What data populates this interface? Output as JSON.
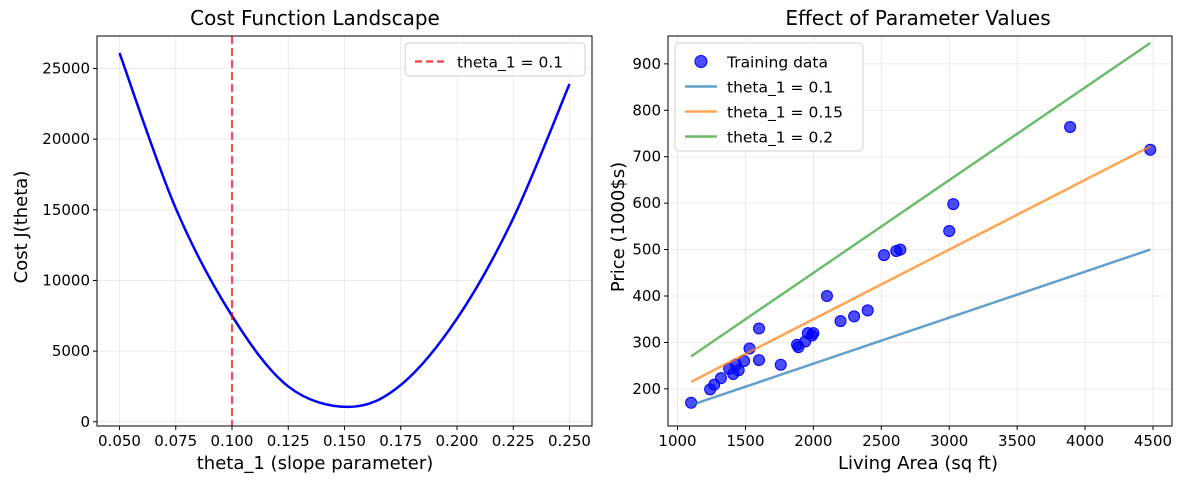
{
  "colors": {
    "cost_curve": "#0000ff",
    "marker_line": "#ff0000",
    "points": "#0000ff",
    "line_0_1": "#1f77b4",
    "line_0_15": "#ff7f0e",
    "line_0_2": "#2ca02c"
  },
  "chart_data": [
    {
      "type": "line",
      "title": "Cost Function Landscape",
      "xlabel": "theta_1 (slope parameter)",
      "ylabel": "Cost J(theta)",
      "xlim": [
        0.04,
        0.26
      ],
      "ylim": [
        -300,
        27300
      ],
      "grid": true,
      "legend_position": "top-right",
      "xticks": [
        0.05,
        0.075,
        0.1,
        0.125,
        0.15,
        0.175,
        0.2,
        0.225,
        0.25
      ],
      "xtick_labels": [
        "0.050",
        "0.075",
        "0.100",
        "0.125",
        "0.150",
        "0.175",
        "0.200",
        "0.225",
        "0.250"
      ],
      "yticks": [
        0,
        5000,
        10000,
        15000,
        20000,
        25000
      ],
      "ytick_labels": [
        "0",
        "5000",
        "10000",
        "15000",
        "20000",
        "25000"
      ],
      "series": [
        {
          "type": "line",
          "color_key": "cost_curve",
          "x": [
            0.05,
            0.075,
            0.1,
            0.125,
            0.152,
            0.175,
            0.2,
            0.225,
            0.25
          ],
          "y": [
            26100,
            15100,
            7500,
            2500,
            1050,
            2600,
            7300,
            14400,
            23900
          ]
        }
      ],
      "vlines": [
        {
          "x": 0.1,
          "label": "theta_1 = 0.1",
          "style": "dashed",
          "color_key": "marker_line"
        }
      ]
    },
    {
      "type": "scatter",
      "title": "Effect of Parameter Values",
      "xlabel": "Living Area (sq ft)",
      "ylabel": "Price (1000$s)",
      "xlim": [
        930,
        4640
      ],
      "ylim": [
        120,
        960
      ],
      "grid": true,
      "legend_position": "top-left",
      "xticks": [
        1000,
        1500,
        2000,
        2500,
        3000,
        3500,
        4000,
        4500
      ],
      "xtick_labels": [
        "1000",
        "1500",
        "2000",
        "2500",
        "3000",
        "3500",
        "4000",
        "4500"
      ],
      "yticks": [
        200,
        300,
        400,
        500,
        600,
        700,
        800,
        900
      ],
      "ytick_labels": [
        "200",
        "300",
        "400",
        "500",
        "600",
        "700",
        "800",
        "900"
      ],
      "scatter": {
        "name": "Training data",
        "color_key": "points",
        "points": [
          [
            1100,
            170
          ],
          [
            1240,
            199
          ],
          [
            1270,
            209
          ],
          [
            1320,
            223
          ],
          [
            1380,
            243
          ],
          [
            1410,
            232
          ],
          [
            1430,
            252
          ],
          [
            1450,
            240
          ],
          [
            1490,
            260
          ],
          [
            1530,
            287
          ],
          [
            1600,
            330
          ],
          [
            1600,
            262
          ],
          [
            1760,
            252
          ],
          [
            1880,
            295
          ],
          [
            1890,
            290
          ],
          [
            1940,
            302
          ],
          [
            1960,
            320
          ],
          [
            1990,
            315
          ],
          [
            2000,
            320
          ],
          [
            2100,
            400
          ],
          [
            2200,
            346
          ],
          [
            2300,
            356
          ],
          [
            2400,
            369
          ],
          [
            2520,
            488
          ],
          [
            2610,
            497
          ],
          [
            2640,
            500
          ],
          [
            3000,
            540
          ],
          [
            3030,
            598
          ],
          [
            3890,
            764
          ],
          [
            4480,
            715
          ]
        ]
      },
      "series": [
        {
          "name": "theta_1 = 0.1",
          "color_key": "line_0_1",
          "x": [
            1100,
            4480
          ],
          "y": [
            165,
            500
          ]
        },
        {
          "name": "theta_1 = 0.15",
          "color_key": "line_0_15",
          "x": [
            1100,
            4480
          ],
          "y": [
            215,
            722
          ]
        },
        {
          "name": "theta_1 = 0.2",
          "color_key": "line_0_2",
          "x": [
            1100,
            4480
          ],
          "y": [
            270,
            945
          ]
        }
      ]
    }
  ]
}
